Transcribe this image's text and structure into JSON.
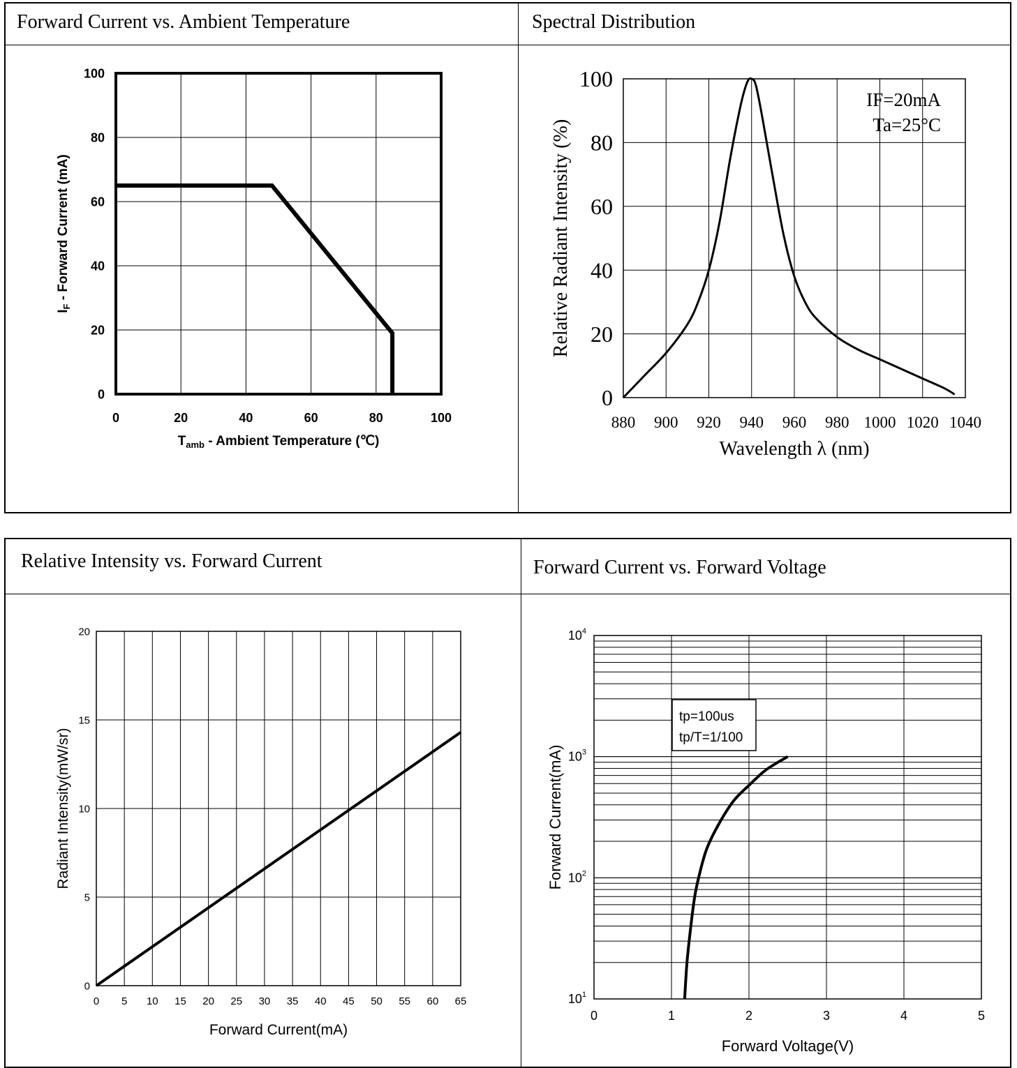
{
  "colors": {
    "line": "#000000",
    "background": "#ffffff"
  },
  "chart_data": [
    {
      "id": "derating",
      "type": "line",
      "title": "Forward Current vs. Ambient Temperature",
      "xlabel": {
        "main": "T",
        "sub": "amb",
        "rest": " - Ambient Temperature (℃)"
      },
      "ylabel": {
        "main": "I",
        "sub": "F",
        "rest": " - Forward Current (mA)"
      },
      "xlim": [
        0,
        100
      ],
      "ylim": [
        0,
        100
      ],
      "xticks": [
        "0",
        "20",
        "40",
        "60",
        "80",
        "100"
      ],
      "yticks": [
        "0",
        "20",
        "40",
        "60",
        "80",
        "100"
      ],
      "grid": true,
      "log_y": false,
      "series": [
        {
          "x": [
            0,
            48,
            85,
            85
          ],
          "y": [
            65,
            65,
            19,
            0
          ]
        }
      ],
      "annotations": []
    },
    {
      "id": "spectral",
      "type": "line",
      "title": "Spectral Distribution",
      "xlabel": {
        "main": "Wavelength λ (nm)",
        "sub": "",
        "rest": ""
      },
      "ylabel": {
        "main": "Relative Radiant Intensity (%)",
        "sub": "",
        "rest": ""
      },
      "xlim": [
        880,
        1040
      ],
      "ylim": [
        0,
        100
      ],
      "xticks": [
        "880",
        "900",
        "920",
        "940",
        "960",
        "980",
        "1000",
        "1020",
        "1040"
      ],
      "yticks": [
        "0",
        "20",
        "40",
        "60",
        "80",
        "100"
      ],
      "grid": true,
      "log_y": false,
      "series": [
        {
          "x": [
            880,
            890,
            900,
            910,
            915,
            920,
            925,
            930,
            935,
            938,
            940,
            942,
            945,
            950,
            955,
            960,
            965,
            970,
            980,
            990,
            1000,
            1010,
            1020,
            1030,
            1035
          ],
          "y": [
            0,
            7,
            14,
            23,
            30,
            40,
            55,
            75,
            92,
            99,
            100,
            98,
            88,
            69,
            51,
            38,
            30,
            25,
            19,
            15,
            12,
            9,
            6,
            3,
            1
          ]
        }
      ],
      "annotations": [
        "IF=20mA",
        "Ta=25°C"
      ]
    },
    {
      "id": "intensity",
      "type": "line",
      "title": "Relative Intensity vs. Forward Current",
      "xlabel": {
        "main": "Forward Current(mA)",
        "sub": "",
        "rest": ""
      },
      "ylabel": {
        "main": "Radiant Intensity(mW/sr)",
        "sub": "",
        "rest": ""
      },
      "xlim": [
        0,
        65
      ],
      "ylim": [
        0,
        20
      ],
      "xticks": [
        "0",
        "5",
        "10",
        "15",
        "20",
        "25",
        "30",
        "35",
        "40",
        "45",
        "50",
        "55",
        "60",
        "65"
      ],
      "yticks": [
        "0",
        "5",
        "10",
        "15",
        "20"
      ],
      "grid": true,
      "log_y": false,
      "series": [
        {
          "x": [
            0,
            5,
            10,
            20,
            30,
            40,
            50,
            60,
            65
          ],
          "y": [
            0,
            1.1,
            2.2,
            4.4,
            6.6,
            8.8,
            11.0,
            13.2,
            14.3
          ]
        }
      ],
      "annotations": []
    },
    {
      "id": "iv",
      "type": "line",
      "title": "Forward Current vs. Forward Voltage",
      "xlabel": {
        "main": "Forward Voltage(V)",
        "sub": "",
        "rest": ""
      },
      "ylabel": {
        "main": "Forward Current(mA)",
        "sub": "",
        "rest": ""
      },
      "xlim": [
        0,
        5
      ],
      "ylim": [
        10,
        10000
      ],
      "xticks": [
        "0",
        "1",
        "2",
        "3",
        "4",
        "5"
      ],
      "yticks": [
        {
          "base": "10",
          "exp": "1"
        },
        {
          "base": "10",
          "exp": "2"
        },
        {
          "base": "10",
          "exp": "3"
        },
        {
          "base": "10",
          "exp": "4"
        }
      ],
      "grid": true,
      "log_y": true,
      "series": [
        {
          "x": [
            1.17,
            1.2,
            1.25,
            1.3,
            1.35,
            1.45,
            1.6,
            1.8,
            2.0,
            2.2,
            2.35,
            2.5
          ],
          "y": [
            10,
            20,
            40,
            70,
            100,
            170,
            270,
            430,
            580,
            760,
            880,
            1000
          ]
        }
      ],
      "annotations": [
        "tp=100us",
        "tp/T=1/100"
      ]
    }
  ]
}
